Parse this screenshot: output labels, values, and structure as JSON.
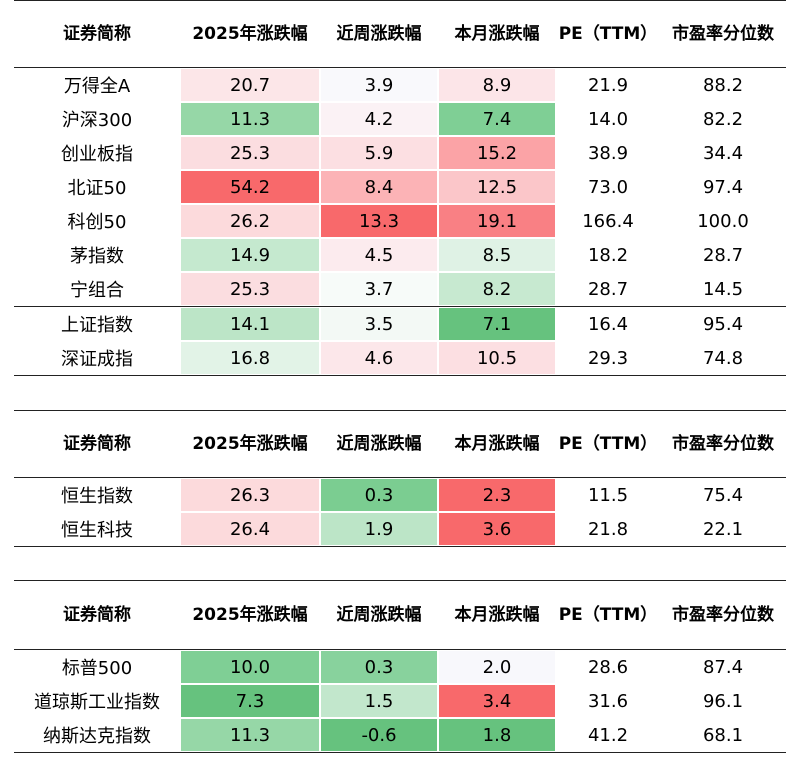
{
  "headers": [
    "证券简称",
    "2025年涨跌幅",
    "近周涨跌幅",
    "本月涨跌幅",
    "PE（TTM）",
    "市盈率分位数"
  ],
  "tables": [
    {
      "rows": [
        {
          "name": "万得全A",
          "ytd": "20.7",
          "week": "3.9",
          "month": "8.9",
          "pe": "21.9",
          "pct": "88.2",
          "colors": [
            "#fce6e8",
            "#f9f9fc",
            "#fce5e8"
          ]
        },
        {
          "name": "沪深300",
          "ytd": "11.3",
          "week": "4.2",
          "month": "7.4",
          "pe": "14.0",
          "pct": "82.2",
          "colors": [
            "#96d7a7",
            "#fbf2f5",
            "#7fcf95"
          ]
        },
        {
          "name": "创业板指",
          "ytd": "25.3",
          "week": "5.9",
          "month": "15.2",
          "pe": "38.9",
          "pct": "34.4",
          "colors": [
            "#fbdde0",
            "#fcdfe2",
            "#fba3a6"
          ]
        },
        {
          "name": "北证50",
          "ytd": "54.2",
          "week": "8.4",
          "month": "12.5",
          "pe": "73.0",
          "pct": "97.4",
          "colors": [
            "#f8696b",
            "#fcb3b6",
            "#fbc6c9"
          ]
        },
        {
          "name": "科创50",
          "ytd": "26.2",
          "week": "13.3",
          "month": "19.1",
          "pe": "166.4",
          "pct": "100.0",
          "colors": [
            "#fcdadc",
            "#f8696b",
            "#f98084"
          ]
        },
        {
          "name": "茅指数",
          "ytd": "14.9",
          "week": "4.5",
          "month": "8.5",
          "pe": "18.2",
          "pct": "28.7",
          "colors": [
            "#c5e9cf",
            "#fcebee",
            "#dff2e5"
          ]
        },
        {
          "name": "宁组合",
          "ytd": "25.3",
          "week": "3.7",
          "month": "8.2",
          "pe": "28.7",
          "pct": "14.5",
          "colors": [
            "#fbdde0",
            "#f7fbf9",
            "#c7e9d0"
          ]
        },
        {
          "name": "上证指数",
          "ytd": "14.1",
          "week": "3.5",
          "month": "7.1",
          "pe": "16.4",
          "pct": "95.4",
          "colors": [
            "#bce5c7",
            "#f3f9f5",
            "#66c27e"
          ]
        },
        {
          "name": "深证成指",
          "ytd": "16.8",
          "week": "4.6",
          "month": "10.5",
          "pe": "29.3",
          "pct": "74.8",
          "colors": [
            "#e2f3e7",
            "#fce7ea",
            "#fcdfe2"
          ]
        }
      ]
    },
    {
      "rows": [
        {
          "name": "恒生指数",
          "ytd": "26.3",
          "week": "0.3",
          "month": "2.3",
          "pe": "11.5",
          "pct": "75.4",
          "colors": [
            "#fcdadc",
            "#7bcd91",
            "#f8696b"
          ]
        },
        {
          "name": "恒生科技",
          "ytd": "26.4",
          "week": "1.9",
          "month": "3.6",
          "pe": "21.8",
          "pct": "22.1",
          "colors": [
            "#fcdadc",
            "#bce5c7",
            "#f8696b"
          ]
        }
      ]
    },
    {
      "rows": [
        {
          "name": "标普500",
          "ytd": "10.0",
          "week": "0.3",
          "month": "2.0",
          "pe": "28.6",
          "pct": "87.4",
          "colors": [
            "#7fcf95",
            "#88d29d",
            "#f8f8fc"
          ]
        },
        {
          "name": "道琼斯工业指数",
          "ytd": "7.3",
          "week": "1.5",
          "month": "3.4",
          "pe": "31.6",
          "pct": "96.1",
          "colors": [
            "#66c27e",
            "#c2e7cc",
            "#f8696b"
          ]
        },
        {
          "name": "纳斯达克指数",
          "ytd": "11.3",
          "week": "-0.6",
          "month": "1.8",
          "pe": "41.2",
          "pct": "68.1",
          "colors": [
            "#96d7a7",
            "#66c27e",
            "#66c27e"
          ]
        }
      ]
    }
  ]
}
